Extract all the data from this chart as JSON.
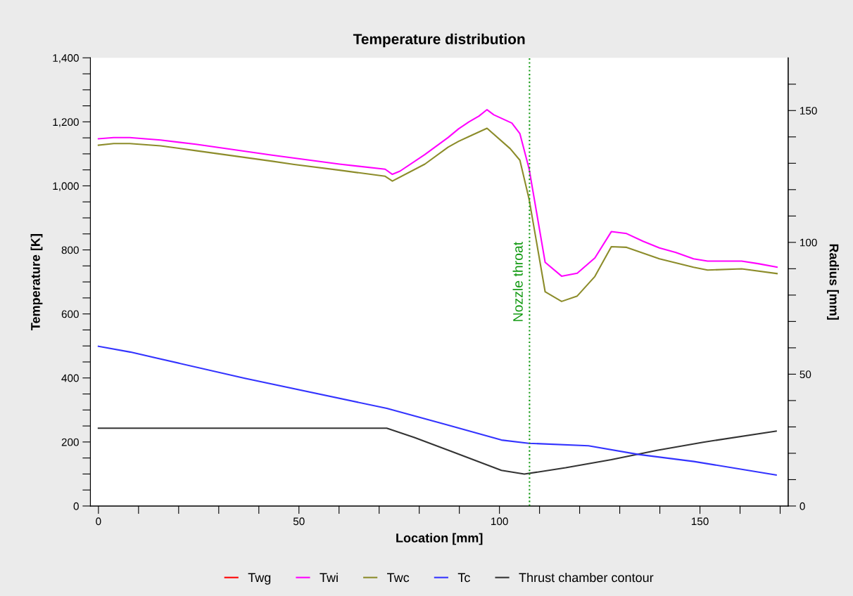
{
  "chart_data": {
    "type": "line",
    "title": "Temperature distribution",
    "xlabel": "Location [mm]",
    "ylabel": "Temperature [K]",
    "y2label": "Radius [mm]",
    "xlim": [
      -2,
      172
    ],
    "xticks": [
      0,
      {
        "value": 10,
        "label": null
      },
      {
        "value": 20,
        "label": null
      },
      {
        "value": 30,
        "label": null
      },
      {
        "value": 40,
        "label": null
      },
      50,
      {
        "value": 60,
        "label": null
      },
      {
        "value": 70,
        "label": null
      },
      {
        "value": 80,
        "label": null
      },
      {
        "value": 90,
        "label": null
      },
      100,
      {
        "value": 110,
        "label": null
      },
      {
        "value": 120,
        "label": null
      },
      {
        "value": 130,
        "label": null
      },
      {
        "value": 140,
        "label": null
      },
      150,
      {
        "value": 160,
        "label": null
      },
      {
        "value": 170,
        "label": null
      }
    ],
    "ylim": [
      0,
      1400
    ],
    "yticks": [
      0,
      {
        "value": 50,
        "label": null
      },
      {
        "value": 100,
        "label": null
      },
      {
        "value": 150,
        "label": null
      },
      200,
      {
        "value": 250,
        "label": null
      },
      {
        "value": 300,
        "label": null
      },
      {
        "value": 350,
        "label": null
      },
      400,
      {
        "value": 450,
        "label": null
      },
      {
        "value": 500,
        "label": null
      },
      {
        "value": 550,
        "label": null
      },
      600,
      {
        "value": 650,
        "label": null
      },
      {
        "value": 700,
        "label": null
      },
      {
        "value": 750,
        "label": null
      },
      800,
      {
        "value": 850,
        "label": null
      },
      {
        "value": 900,
        "label": null
      },
      {
        "value": 950,
        "label": null
      },
      {
        "value": 1000,
        "label": "1,000"
      },
      {
        "value": 1050,
        "label": null
      },
      {
        "value": 1100,
        "label": null
      },
      {
        "value": 1150,
        "label": null
      },
      {
        "value": 1200,
        "label": "1,200"
      },
      {
        "value": 1250,
        "label": null
      },
      {
        "value": 1300,
        "label": null
      },
      {
        "value": 1350,
        "label": null
      },
      {
        "value": 1400,
        "label": "1,400"
      }
    ],
    "y2lim": [
      0,
      170
    ],
    "y2ticks": [
      0,
      {
        "value": 10,
        "label": null
      },
      {
        "value": 20,
        "label": null
      },
      {
        "value": 30,
        "label": null
      },
      {
        "value": 40,
        "label": null
      },
      50,
      {
        "value": 60,
        "label": null
      },
      {
        "value": 70,
        "label": null
      },
      {
        "value": 80,
        "label": null
      },
      {
        "value": 90,
        "label": null
      },
      100,
      {
        "value": 110,
        "label": null
      },
      {
        "value": 120,
        "label": null
      },
      {
        "value": 130,
        "label": null
      },
      {
        "value": 140,
        "label": null
      },
      150,
      {
        "value": 160,
        "label": null
      }
    ],
    "grid": false,
    "legend": "bottom",
    "line_style": "solid",
    "ref_lines": [
      {
        "axis": "x",
        "value": 107.5,
        "label": "Nozzle throat",
        "color": "#119911",
        "line_style": "dotted"
      }
    ],
    "series": [
      {
        "name": "Twg",
        "color": "#ff0000"
      },
      {
        "name": "Twi",
        "color": "#ff00ff",
        "x": [
          0,
          3.8,
          7.8,
          15.5,
          24.3,
          43.3,
          60.1,
          71.5,
          73.3,
          75.2,
          81.4,
          87.2,
          89.8,
          92.4,
          94.9,
          96.9,
          98.6,
          103.1,
          105.1,
          107.4,
          111.4,
          115.5,
          119.4,
          123.8,
          127.9,
          131.7,
          135.8,
          139.9,
          144,
          148.4,
          151.9,
          160.4,
          164.5,
          169.2
        ],
        "values": [
          1147,
          1151,
          1151,
          1143,
          1130,
          1096,
          1068,
          1052,
          1036,
          1046,
          1098,
          1151,
          1178,
          1200,
          1218,
          1238,
          1222,
          1196,
          1163,
          1053,
          761,
          718,
          727,
          775,
          857,
          851,
          827,
          806,
          792,
          772,
          765,
          765,
          757,
          746
        ]
      },
      {
        "name": "Twc",
        "color": "#8c8c2a",
        "x": [
          0,
          3.8,
          7.8,
          15.5,
          24.3,
          43.3,
          48.8,
          60.1,
          71.5,
          73.3,
          81.4,
          87.2,
          89.8,
          92.4,
          96.9,
          102.7,
          105.1,
          107.4,
          111.4,
          115.5,
          119.4,
          123.8,
          127.9,
          131.7,
          139.9,
          148.4,
          151.9,
          160.4,
          169.2
        ],
        "values": [
          1127,
          1132,
          1132,
          1125,
          1110,
          1077,
          1067,
          1049,
          1030,
          1015,
          1068,
          1121,
          1139,
          1154,
          1180,
          1116,
          1080,
          958,
          669,
          639,
          656,
          717,
          810,
          808,
          772,
          746,
          737,
          741,
          726
        ]
      },
      {
        "name": "Tc",
        "color": "#3333ff",
        "x": [
          0,
          7.9,
          36.5,
          71.9,
          86.8,
          100.5,
          107.3,
          122.2,
          134.7,
          148.5,
          169
        ],
        "values": [
          499,
          481,
          399,
          305,
          254,
          206,
          196,
          188,
          161,
          139,
          97
        ]
      },
      {
        "name": "Thrust chamber contour",
        "color": "#333333",
        "axis": "y2",
        "x": [
          0,
          71.9,
          78.8,
          87.9,
          100.5,
          106.2,
          116.5,
          127.9,
          139.3,
          150.8,
          169
        ],
        "values": [
          29.5,
          29.5,
          26,
          20.8,
          13.5,
          12.1,
          14.5,
          17.6,
          21.1,
          24.2,
          28.4
        ]
      }
    ]
  }
}
